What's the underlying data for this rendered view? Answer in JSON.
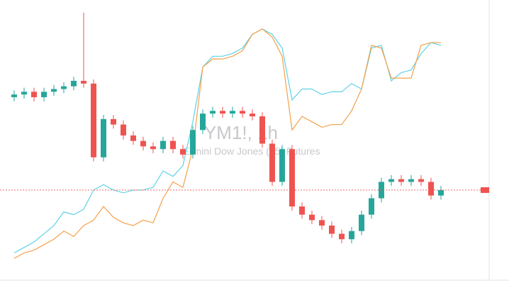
{
  "chart_data": {
    "type": "candlestick",
    "title": "YM1!, 1h",
    "subtitle": "E-mini Dow Jones ($5) Futures",
    "ylim": [
      0,
      100
    ],
    "up_color": "#26a69a",
    "down_color": "#ef5350",
    "open": [
      67,
      68,
      69,
      67,
      69,
      70,
      71,
      73,
      72,
      45,
      59,
      57,
      53,
      51,
      49,
      48,
      51,
      48,
      46,
      55,
      61,
      62,
      61,
      62,
      61,
      60,
      50,
      36,
      48,
      27,
      24,
      22,
      20,
      17,
      15,
      18,
      24,
      30,
      36,
      37,
      36,
      37,
      36,
      31
    ],
    "close": [
      68,
      69,
      67,
      69,
      70,
      71,
      73,
      72,
      45,
      59,
      57,
      53,
      51,
      49,
      48,
      51,
      48,
      46,
      55,
      61,
      62,
      61,
      62,
      61,
      60,
      50,
      36,
      48,
      27,
      24,
      22,
      20,
      17,
      15,
      18,
      24,
      30,
      36,
      37,
      36,
      37,
      36,
      31,
      33
    ],
    "high": [
      69.5,
      70.5,
      70.5,
      70.5,
      71.5,
      72.5,
      74.5,
      98,
      73.5,
      60.5,
      60.5,
      58.5,
      54.5,
      52.5,
      50.5,
      52.5,
      52.5,
      49.5,
      56.5,
      62.5,
      63.5,
      63.5,
      63.5,
      63.5,
      62.5,
      61.5,
      51.5,
      49.5,
      49.5,
      28.5,
      25.5,
      23.5,
      21.5,
      18.5,
      19.5,
      25.5,
      31.5,
      37.5,
      38.5,
      38.5,
      38.5,
      38.5,
      37.5,
      34.5
    ],
    "low": [
      65.5,
      66.5,
      65.5,
      65.5,
      67.5,
      68.5,
      69.5,
      70.5,
      43.5,
      43.5,
      55.5,
      51.5,
      49.5,
      47.5,
      46.5,
      46.5,
      46.5,
      44.5,
      44.5,
      53.5,
      59.5,
      59.5,
      59.5,
      59.5,
      58.5,
      48.5,
      34.5,
      34.5,
      25.5,
      22.5,
      20.5,
      18.5,
      15.5,
      13.5,
      13.5,
      16.5,
      22.5,
      28.5,
      34.5,
      34.5,
      34.5,
      34.5,
      29.5,
      29.5
    ],
    "series": [
      {
        "color": "#5fd3e6",
        "values": [
          10,
          12,
          14,
          17,
          20,
          25,
          24,
          26,
          33,
          35,
          33,
          32,
          33,
          33,
          34,
          40,
          38,
          42,
          58,
          78,
          82,
          82,
          83,
          85,
          90,
          92,
          90,
          85,
          66,
          70,
          70,
          68,
          69,
          69,
          72,
          70,
          85,
          86,
          73,
          76,
          77,
          83,
          87,
          86
        ]
      },
      {
        "color": "#f5a04a",
        "values": [
          8,
          10,
          11,
          13,
          15,
          18,
          16,
          20,
          22,
          27,
          23,
          21,
          20,
          22,
          21,
          30,
          36,
          34,
          48,
          78,
          81,
          81,
          82,
          84,
          90,
          92,
          89,
          82,
          55,
          60,
          58,
          56,
          57,
          57,
          62,
          70,
          86,
          85,
          74,
          74,
          74,
          86,
          87,
          87
        ]
      }
    ]
  }
}
